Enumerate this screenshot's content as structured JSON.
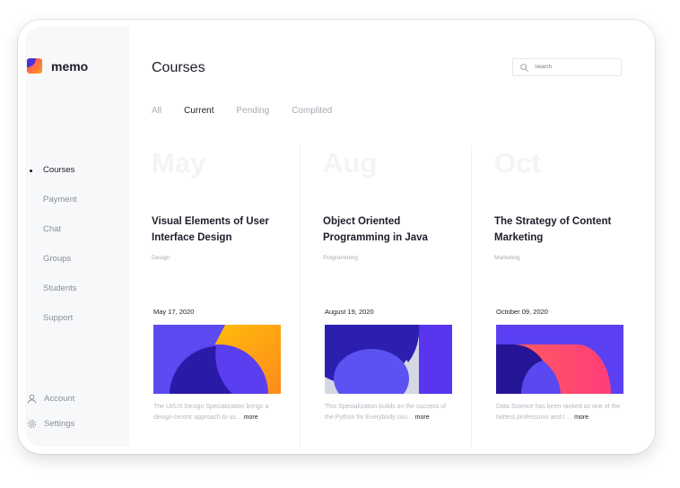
{
  "app": {
    "name": "memo"
  },
  "sidebar": {
    "items": [
      {
        "label": "Courses",
        "active": true
      },
      {
        "label": "Payment"
      },
      {
        "label": "Chat"
      },
      {
        "label": "Groups"
      },
      {
        "label": "Students"
      },
      {
        "label": "Support"
      }
    ],
    "bottom": [
      {
        "label": "Account",
        "icon": "user-icon"
      },
      {
        "label": "Settings",
        "icon": "gear-icon"
      }
    ]
  },
  "header": {
    "title": "Courses",
    "search_placeholder": "Search"
  },
  "tabs": [
    {
      "label": "All"
    },
    {
      "label": "Current",
      "active": true
    },
    {
      "label": "Pending"
    },
    {
      "label": "Complited"
    }
  ],
  "courses": [
    {
      "month": "May",
      "title": "Visual Elements of User Interface Design",
      "category": "Design",
      "date": "May 17, 2020",
      "description": "The UI/UX Design Specialization brings a design-centric approach to us...",
      "more": "more"
    },
    {
      "month": "Aug",
      "title": "Object Oriented Programming in Java",
      "category": "Programming",
      "date": "August 19, 2020",
      "description": "This Specialization builds on the success of the Python for Everybody cou...",
      "more": "more"
    },
    {
      "month": "Oct",
      "title": "The Strategy of Content Marketing",
      "category": "Marketing",
      "date": "October 09, 2020",
      "description": "Data Science has been ranked as one of the hottest professions and t ...",
      "more": "more"
    }
  ]
}
